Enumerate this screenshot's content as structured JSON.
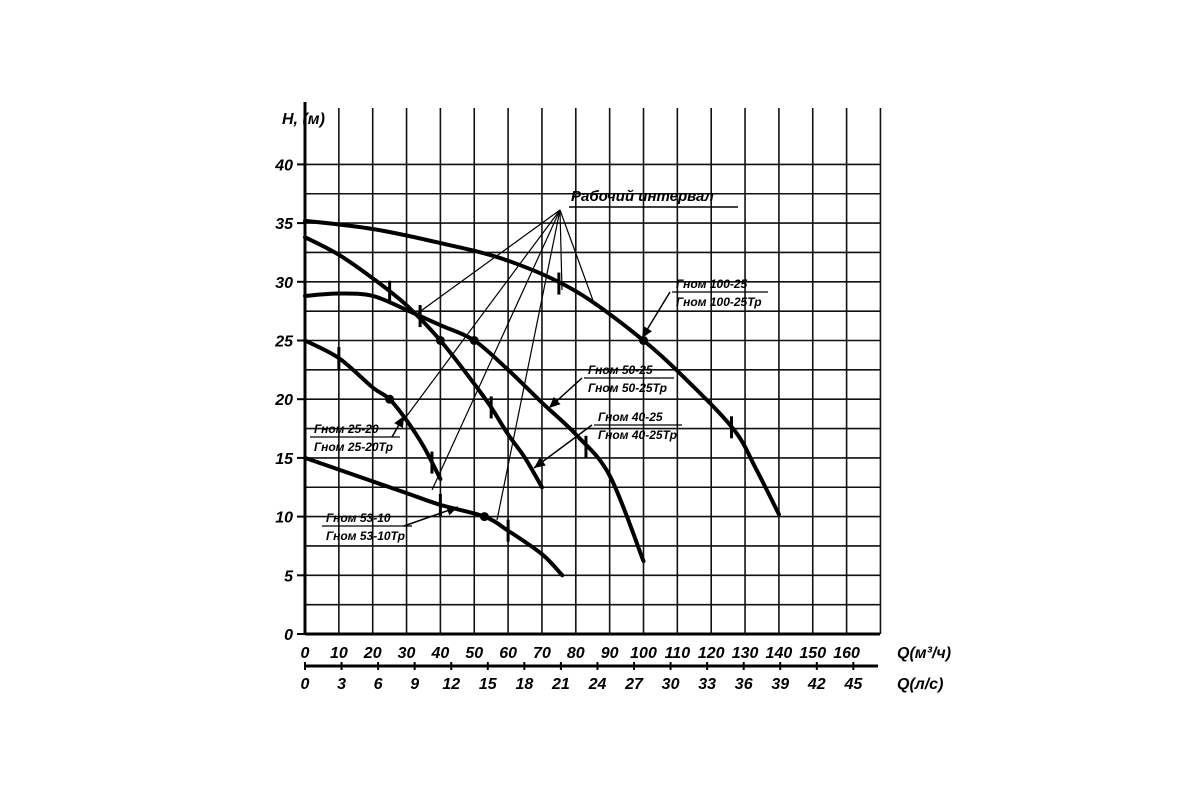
{
  "chart_data": {
    "type": "line",
    "title": "",
    "ylabel": "H, (м)",
    "xlabel_primary": "Q(м³/ч)",
    "xlabel_secondary": "Q(л/с)",
    "ylim": [
      0,
      42
    ],
    "xlim": [
      0,
      170
    ],
    "grid": true,
    "y_ticks": [
      "0",
      "5",
      "10",
      "15",
      "20",
      "25",
      "30",
      "35",
      "40"
    ],
    "x_ticks_m3h": [
      "0",
      "10",
      "20",
      "30",
      "40",
      "50",
      "60",
      "70",
      "80",
      "90",
      "100",
      "110",
      "120",
      "130",
      "140",
      "150",
      "160"
    ],
    "x_ticks_ls": [
      "0",
      "3",
      "6",
      "9",
      "12",
      "15",
      "18",
      "21",
      "24",
      "27",
      "30",
      "33",
      "36",
      "39",
      "42",
      "45"
    ],
    "working_interval_label": "Рабочий интервал",
    "series": [
      {
        "name": "Гном 25-20 / Гном 25-20Тр",
        "label_lines": [
          "Гном 25-20",
          "Гном 25-20Тр"
        ],
        "points": [
          [
            0,
            25
          ],
          [
            10,
            23.5
          ],
          [
            20,
            21
          ],
          [
            25,
            20
          ],
          [
            30,
            18.2
          ],
          [
            35,
            16
          ],
          [
            40,
            13.2
          ]
        ],
        "rated_point": [
          25,
          20
        ],
        "interval_marks": [
          10,
          37.5
        ]
      },
      {
        "name": "Гном 40-25 / Гном 40-25Тр",
        "label_lines": [
          "Гном 40-25",
          "Гном 40-25Тр"
        ],
        "points": [
          [
            0,
            33.8
          ],
          [
            10,
            32.3
          ],
          [
            20,
            30.3
          ],
          [
            30,
            28
          ],
          [
            40,
            25
          ],
          [
            50,
            21.3
          ],
          [
            55,
            19.3
          ],
          [
            60,
            17
          ],
          [
            65,
            15
          ],
          [
            70,
            12.5
          ]
        ],
        "rated_point": [
          40,
          25
        ],
        "interval_marks": [
          25,
          55
        ]
      },
      {
        "name": "Гном 50-25 / Гном 50-25Тр",
        "label_lines": [
          "Гном 50-25",
          "Гном 50-25Тр"
        ],
        "points": [
          [
            0,
            28.8
          ],
          [
            10,
            29
          ],
          [
            20,
            28.8
          ],
          [
            30,
            27.6
          ],
          [
            40,
            26.3
          ],
          [
            50,
            25
          ],
          [
            60,
            22.5
          ],
          [
            70,
            19.7
          ],
          [
            80,
            17
          ],
          [
            90,
            13.5
          ],
          [
            100,
            6.2
          ]
        ],
        "rated_point": [
          50,
          25
        ],
        "interval_marks": [
          34,
          83
        ]
      },
      {
        "name": "Гном 53-10 / Гном 53-10Тр",
        "label_lines": [
          "Гном 53-10",
          "Гном 53-10Тр"
        ],
        "points": [
          [
            0,
            15
          ],
          [
            10,
            14
          ],
          [
            20,
            13
          ],
          [
            30,
            12
          ],
          [
            40,
            11
          ],
          [
            53,
            10
          ],
          [
            60,
            8.8
          ],
          [
            70,
            6.8
          ],
          [
            76,
            5
          ]
        ],
        "rated_point": [
          53,
          10
        ],
        "interval_marks": [
          40,
          60
        ]
      },
      {
        "name": "Гном 100-25 / Гном 100-25Тр",
        "label_lines": [
          "Гном 100-25",
          "Гном 100-25Тр"
        ],
        "points": [
          [
            0,
            35.2
          ],
          [
            20,
            34.5
          ],
          [
            40,
            33.3
          ],
          [
            60,
            31.8
          ],
          [
            80,
            29.2
          ],
          [
            100,
            25
          ],
          [
            115,
            21
          ],
          [
            127,
            17.3
          ],
          [
            133,
            14.2
          ],
          [
            140,
            10.2
          ]
        ],
        "rated_point": [
          100,
          25
        ],
        "interval_marks": [
          75,
          126
        ]
      }
    ]
  }
}
